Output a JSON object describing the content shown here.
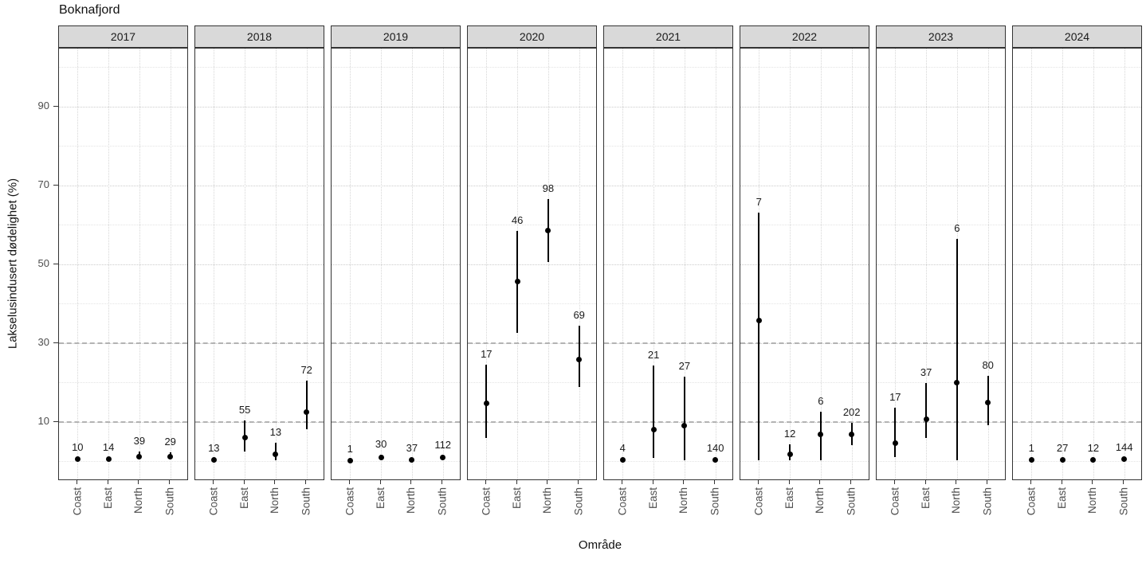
{
  "chart_data": {
    "type": "pointrange",
    "title": "Boknafjord",
    "xlabel": "Område",
    "ylabel": "Lakselusindusert dødelighet (%)",
    "categories": [
      "Coast",
      "East",
      "North",
      "South"
    ],
    "y_ticks": [
      10,
      30,
      50,
      70,
      90
    ],
    "y_minor_gridlines": [
      0,
      20,
      40,
      60,
      80,
      100
    ],
    "ref_lines_dashed": [
      10,
      30
    ],
    "ylim": [
      -5.1,
      104.7
    ],
    "grid": "on",
    "legend": "none",
    "facets": [
      {
        "year": "2017",
        "points": [
          {
            "category": "Coast",
            "n_label": "10",
            "value": 0.5,
            "lower": 0.5,
            "upper": 0.8
          },
          {
            "category": "East",
            "n_label": "14",
            "value": 0.5,
            "lower": 0.5,
            "upper": 0.8
          },
          {
            "category": "North",
            "n_label": "39",
            "value": 1.2,
            "lower": 0.6,
            "upper": 2.5
          },
          {
            "category": "South",
            "n_label": "29",
            "value": 1.1,
            "lower": 0.6,
            "upper": 2.3
          }
        ]
      },
      {
        "year": "2018",
        "points": [
          {
            "category": "Coast",
            "n_label": "13",
            "value": 0.3,
            "lower": 0.3,
            "upper": 0.6
          },
          {
            "category": "East",
            "n_label": "55",
            "value": 6.0,
            "lower": 2.4,
            "upper": 10.3
          },
          {
            "category": "North",
            "n_label": "13",
            "value": 1.8,
            "lower": 0.2,
            "upper": 4.6
          },
          {
            "category": "South",
            "n_label": "72",
            "value": 12.5,
            "lower": 8.1,
            "upper": 20.4
          }
        ]
      },
      {
        "year": "2019",
        "points": [
          {
            "category": "Coast",
            "n_label": "1",
            "value": 0.2,
            "lower": 0.2,
            "upper": 0.5
          },
          {
            "category": "East",
            "n_label": "30",
            "value": 1.0,
            "lower": 0.7,
            "upper": 1.6
          },
          {
            "category": "North",
            "n_label": "37",
            "value": 0.3,
            "lower": 0.3,
            "upper": 0.6
          },
          {
            "category": "South",
            "n_label": "112",
            "value": 0.9,
            "lower": 0.6,
            "upper": 1.5
          }
        ]
      },
      {
        "year": "2020",
        "points": [
          {
            "category": "Coast",
            "n_label": "17",
            "value": 14.7,
            "lower": 5.9,
            "upper": 24.4
          },
          {
            "category": "East",
            "n_label": "46",
            "value": 45.5,
            "lower": 32.6,
            "upper": 58.4
          },
          {
            "category": "North",
            "n_label": "98",
            "value": 58.5,
            "lower": 50.5,
            "upper": 66.4
          },
          {
            "category": "South",
            "n_label": "69",
            "value": 25.7,
            "lower": 18.8,
            "upper": 34.3
          }
        ]
      },
      {
        "year": "2021",
        "points": [
          {
            "category": "Coast",
            "n_label": "4",
            "value": 0.3,
            "lower": 0.3,
            "upper": 0.6
          },
          {
            "category": "East",
            "n_label": "21",
            "value": 7.9,
            "lower": 0.8,
            "upper": 24.3
          },
          {
            "category": "North",
            "n_label": "27",
            "value": 8.9,
            "lower": 0.3,
            "upper": 21.5
          },
          {
            "category": "South",
            "n_label": "140",
            "value": 0.3,
            "lower": 0.3,
            "upper": 0.6
          }
        ]
      },
      {
        "year": "2022",
        "points": [
          {
            "category": "Coast",
            "n_label": "7",
            "value": 35.6,
            "lower": 0.2,
            "upper": 63.0
          },
          {
            "category": "East",
            "n_label": "12",
            "value": 1.8,
            "lower": 0.2,
            "upper": 4.2
          },
          {
            "category": "North",
            "n_label": "6",
            "value": 6.7,
            "lower": 0.2,
            "upper": 12.5
          },
          {
            "category": "South",
            "n_label": "202",
            "value": 6.7,
            "lower": 4.0,
            "upper": 9.7
          }
        ]
      },
      {
        "year": "2023",
        "points": [
          {
            "category": "Coast",
            "n_label": "17",
            "value": 4.6,
            "lower": 1.0,
            "upper": 13.5
          },
          {
            "category": "East",
            "n_label": "37",
            "value": 10.7,
            "lower": 5.8,
            "upper": 19.8
          },
          {
            "category": "North",
            "n_label": "6",
            "value": 19.8,
            "lower": 0.2,
            "upper": 56.4
          },
          {
            "category": "South",
            "n_label": "80",
            "value": 14.8,
            "lower": 9.1,
            "upper": 21.6
          }
        ]
      },
      {
        "year": "2024",
        "points": [
          {
            "category": "Coast",
            "n_label": "1",
            "value": 0.3,
            "lower": 0.3,
            "upper": 0.6
          },
          {
            "category": "East",
            "n_label": "27",
            "value": 0.3,
            "lower": 0.3,
            "upper": 0.6
          },
          {
            "category": "North",
            "n_label": "12",
            "value": 0.3,
            "lower": 0.3,
            "upper": 0.6
          },
          {
            "category": "South",
            "n_label": "144",
            "value": 0.5,
            "lower": 0.5,
            "upper": 0.8
          }
        ]
      }
    ]
  },
  "colors": {
    "point": "#000000",
    "strip_background": "#d9d9d9",
    "panel_border": "#333333",
    "reference_line": "#b3b3b3",
    "gridline_major": "#cccccc",
    "gridline_minor": "#e3e3e3",
    "tick_text": "#4d4d4d"
  }
}
